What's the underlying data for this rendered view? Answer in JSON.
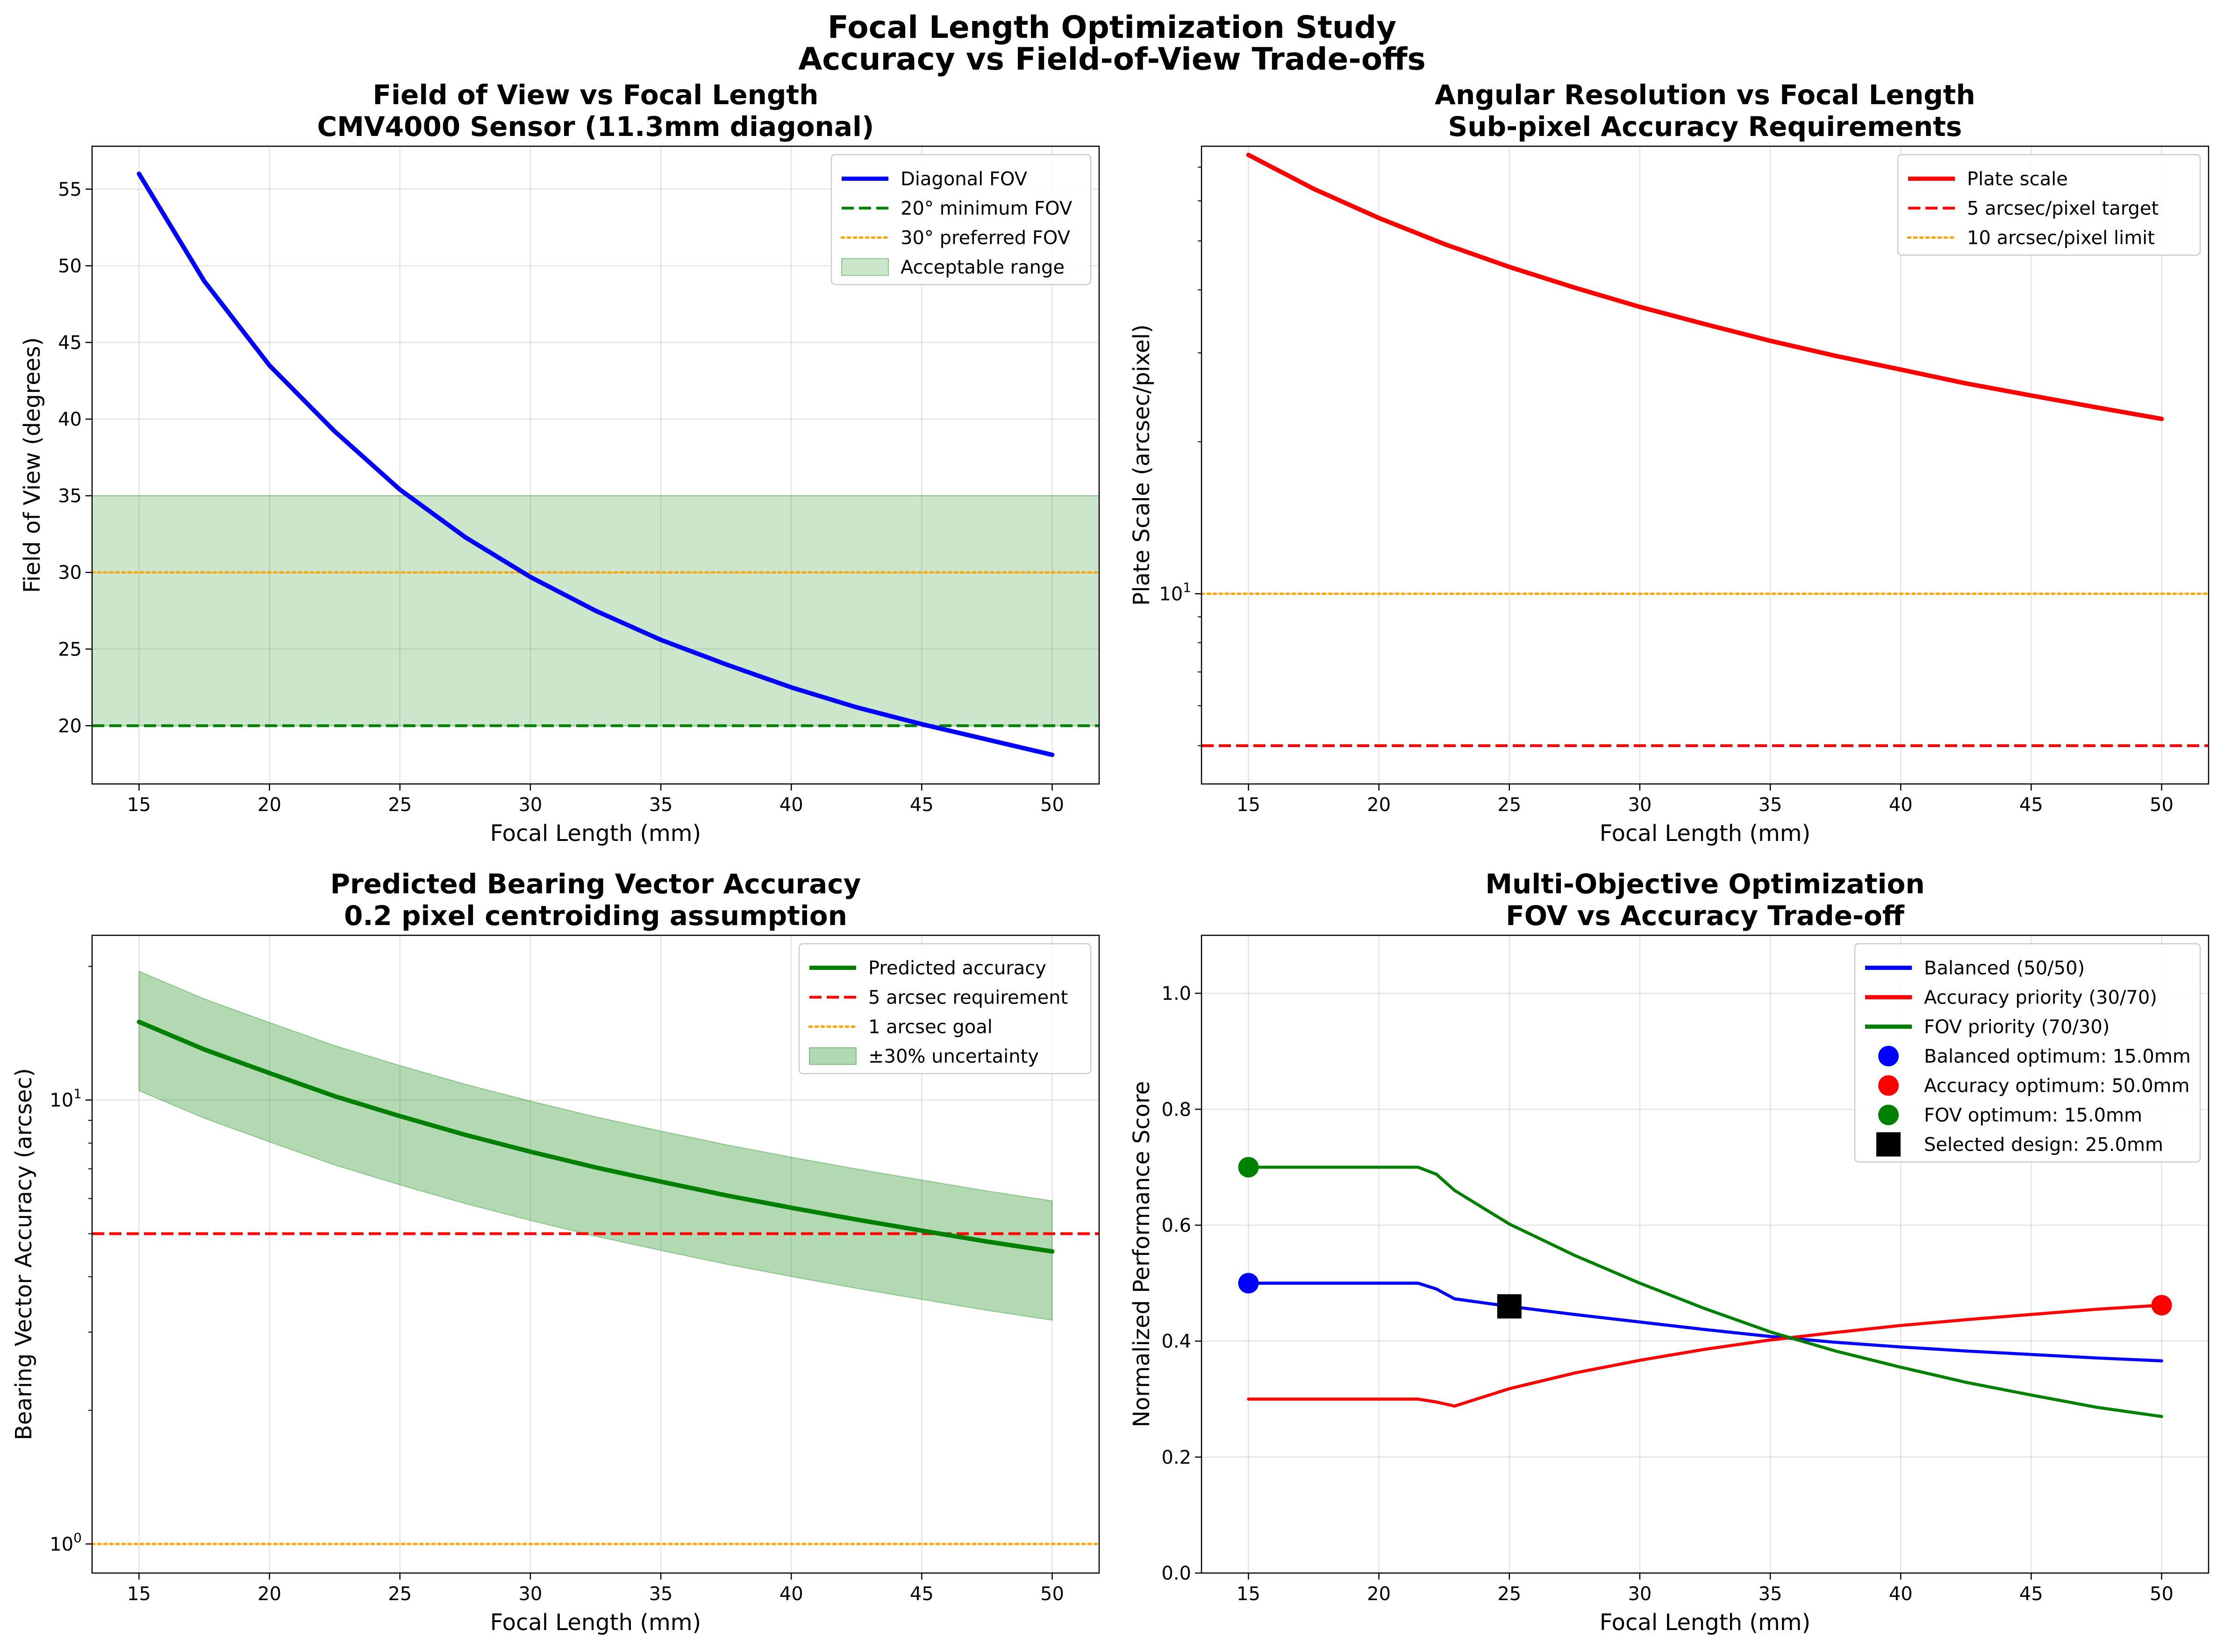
{
  "figure": {
    "title_line1": "Focal Length Optimization Study",
    "title_line2": "Accuracy vs Field-of-View Trade-offs"
  },
  "chart_data": [
    {
      "id": "fov",
      "type": "line",
      "title": "Field of View vs Focal Length",
      "subtitle": "CMV4000 Sensor (11.3mm diagonal)",
      "xlabel": "Focal Length (mm)",
      "ylabel": "Field of View (degrees)",
      "xlim": [
        13.2,
        51.8
      ],
      "ylim": [
        16.2,
        57.8
      ],
      "yscale": "linear",
      "xticks": [
        15,
        20,
        25,
        30,
        35,
        40,
        45,
        50
      ],
      "yticks": [
        20,
        25,
        30,
        35,
        40,
        45,
        50,
        55
      ],
      "grid": true,
      "legend_position": "upper right",
      "series": [
        {
          "name": "Diagonal FOV",
          "color": "#0000ff",
          "style": "solid",
          "width": 3.2,
          "x": [
            15,
            17.5,
            20,
            22.5,
            25,
            27.5,
            30,
            32.5,
            35,
            37.5,
            40,
            42.5,
            45,
            47.5,
            50
          ],
          "y": [
            56.0,
            49.0,
            43.5,
            39.2,
            35.4,
            32.3,
            29.7,
            27.5,
            25.6,
            24.0,
            22.5,
            21.2,
            20.1,
            19.1,
            18.1
          ]
        }
      ],
      "hlines": [
        {
          "name": "20° minimum FOV",
          "y": 20,
          "color": "#008000",
          "style": "dashed"
        },
        {
          "name": "30° preferred FOV",
          "y": 30,
          "color": "#ffa500",
          "style": "dotted"
        }
      ],
      "bands": [
        {
          "name": "Acceptable range",
          "y0": 20,
          "y1": 35,
          "color": "#008000",
          "opacity": 0.2
        }
      ]
    },
    {
      "id": "plate",
      "type": "line",
      "title": "Angular Resolution vs Focal Length",
      "subtitle": "Sub-pixel Accuracy Requirements",
      "xlabel": "Focal Length (mm)",
      "ylabel": "Plate Scale (arcsec/pixel)",
      "xlim": [
        13.2,
        51.8
      ],
      "ylim": [
        4.2,
        77
      ],
      "yscale": "log",
      "xticks": [
        15,
        20,
        25,
        30,
        35,
        40,
        45,
        50
      ],
      "ytick_major": [
        {
          "value": 10,
          "base": "10",
          "exp": "1"
        }
      ],
      "yminor": [
        5,
        6,
        7,
        8,
        9,
        20,
        30,
        40,
        50,
        60,
        70
      ],
      "grid": true,
      "legend_position": "upper right",
      "series": [
        {
          "name": "Plate scale",
          "color": "#ff0000",
          "style": "solid",
          "width": 3.2,
          "x": [
            15,
            17.5,
            20,
            22.5,
            25,
            27.5,
            30,
            32.5,
            35,
            37.5,
            40,
            42.5,
            45,
            47.5,
            50
          ],
          "y": [
            74.0,
            63.4,
            55.5,
            49.3,
            44.4,
            40.4,
            37.0,
            34.2,
            31.7,
            29.6,
            27.8,
            26.1,
            24.7,
            23.4,
            22.2
          ]
        }
      ],
      "hlines": [
        {
          "name": "5 arcsec/pixel target",
          "y": 5,
          "color": "#ff0000",
          "style": "dashed"
        },
        {
          "name": "10 arcsec/pixel limit",
          "y": 10,
          "color": "#ffa500",
          "style": "dotted"
        }
      ],
      "bands": []
    },
    {
      "id": "bearing",
      "type": "line",
      "title": "Predicted Bearing Vector Accuracy",
      "subtitle": "0.2 pixel centroiding assumption",
      "xlabel": "Focal Length (mm)",
      "ylabel": "Bearing Vector Accuracy (arcsec)",
      "xlim": [
        13.2,
        51.8
      ],
      "ylim": [
        0.86,
        23.5
      ],
      "yscale": "log",
      "xticks": [
        15,
        20,
        25,
        30,
        35,
        40,
        45,
        50
      ],
      "ytick_major": [
        {
          "value": 1,
          "base": "10",
          "exp": "0"
        },
        {
          "value": 10,
          "base": "10",
          "exp": "1"
        }
      ],
      "yminor": [
        2,
        3,
        4,
        5,
        6,
        7,
        8,
        9,
        20
      ],
      "grid": true,
      "legend_position": "upper right",
      "series": [
        {
          "name": "Predicted accuracy",
          "color": "#008000",
          "style": "solid",
          "width": 3.2,
          "x": [
            15,
            17.5,
            20,
            22.5,
            25,
            27.5,
            30,
            32.5,
            35,
            37.5,
            40,
            42.5,
            45,
            47.5,
            50
          ],
          "y": [
            15.0,
            13.0,
            11.5,
            10.2,
            9.2,
            8.35,
            7.65,
            7.05,
            6.55,
            6.1,
            5.72,
            5.38,
            5.08,
            4.8,
            4.56
          ]
        }
      ],
      "hlines": [
        {
          "name": "5 arcsec requirement",
          "y": 5,
          "color": "#ff0000",
          "style": "dashed"
        },
        {
          "name": "1 arcsec goal",
          "y": 1,
          "color": "#ffa500",
          "style": "dotted"
        }
      ],
      "bands": [
        {
          "name": "±30% uncertainty",
          "from_series": 0,
          "factor_low": 0.7,
          "factor_high": 1.3,
          "color": "#008000",
          "opacity": 0.3
        }
      ]
    },
    {
      "id": "multi",
      "type": "line",
      "title": "Multi-Objective Optimization",
      "subtitle": "FOV vs Accuracy Trade-off",
      "xlabel": "Focal Length (mm)",
      "ylabel": "Normalized Performance Score",
      "xlim": [
        13.2,
        51.8
      ],
      "ylim": [
        0,
        1.1
      ],
      "yscale": "linear",
      "xticks": [
        15,
        20,
        25,
        30,
        35,
        40,
        45,
        50
      ],
      "yticks": [
        0.0,
        0.2,
        0.4,
        0.6,
        0.8,
        1.0
      ],
      "ytick_decimals": 1,
      "grid": true,
      "legend_position": "upper right",
      "series": [
        {
          "name": "Balanced (50/50)",
          "color": "#0000ff",
          "style": "solid",
          "width": 2.2,
          "x": [
            15,
            17.5,
            20,
            21.5,
            22.2,
            22.9,
            25,
            27.5,
            30,
            32.5,
            35,
            37.5,
            40,
            42.5,
            45,
            47.5,
            50
          ],
          "y": [
            0.5,
            0.5,
            0.5,
            0.5,
            0.49,
            0.473,
            0.46,
            0.446,
            0.433,
            0.42,
            0.408,
            0.398,
            0.39,
            0.383,
            0.377,
            0.371,
            0.366
          ]
        },
        {
          "name": "Accuracy priority (30/70)",
          "color": "#ff0000",
          "style": "solid",
          "width": 2.2,
          "x": [
            15,
            17.5,
            20,
            21.5,
            22.2,
            22.9,
            25,
            27.5,
            30,
            32.5,
            35,
            37.5,
            40,
            42.5,
            45,
            47.5,
            50
          ],
          "y": [
            0.3,
            0.3,
            0.3,
            0.3,
            0.295,
            0.288,
            0.318,
            0.345,
            0.367,
            0.386,
            0.402,
            0.415,
            0.427,
            0.437,
            0.446,
            0.455,
            0.462
          ]
        },
        {
          "name": "FOV priority (70/30)",
          "color": "#008000",
          "style": "solid",
          "width": 2.2,
          "x": [
            15,
            17.5,
            20,
            21.5,
            22.2,
            22.9,
            25,
            27.5,
            30,
            32.5,
            35,
            37.5,
            40,
            42.5,
            45,
            47.5,
            50
          ],
          "y": [
            0.7,
            0.7,
            0.7,
            0.7,
            0.688,
            0.66,
            0.602,
            0.548,
            0.5,
            0.456,
            0.416,
            0.383,
            0.355,
            0.329,
            0.307,
            0.286,
            0.27
          ]
        }
      ],
      "markers": [
        {
          "name": "Balanced optimum: 15.0mm",
          "x": 15,
          "y": 0.5,
          "color": "#0000ff",
          "shape": "circle"
        },
        {
          "name": "Accuracy optimum: 50.0mm",
          "x": 50,
          "y": 0.462,
          "color": "#ff0000",
          "shape": "circle"
        },
        {
          "name": "FOV optimum: 15.0mm",
          "x": 15,
          "y": 0.7,
          "color": "#008000",
          "shape": "circle"
        },
        {
          "name": "Selected design: 25.0mm",
          "x": 25,
          "y": 0.46,
          "color": "#000000",
          "shape": "square"
        }
      ],
      "hlines": [],
      "bands": []
    }
  ]
}
